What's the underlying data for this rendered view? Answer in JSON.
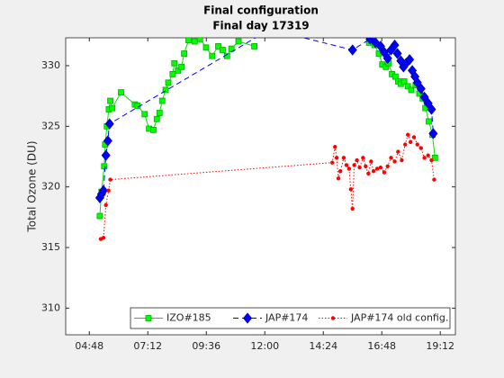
{
  "chart_data": {
    "type": "line",
    "title": "Final configuration",
    "subtitle": "Final day 17319",
    "y_label": "Total Ozone (DU)",
    "xlim": [
      3.83,
      19.82
    ],
    "xticks": [
      {
        "value": 4.8,
        "label": "04:48"
      },
      {
        "value": 7.2,
        "label": "07:12"
      },
      {
        "value": 9.6,
        "label": "09:36"
      },
      {
        "value": 12,
        "label": "12:00"
      },
      {
        "value": 14.4,
        "label": "14:24"
      },
      {
        "value": 16.8,
        "label": "16:48"
      },
      {
        "value": 19.2,
        "label": "19:12"
      }
    ],
    "ylim": [
      307.8,
      332.3
    ],
    "yticks": [
      310,
      315,
      320,
      325,
      330
    ],
    "grid": false,
    "legend": "south-east",
    "series": [
      {
        "name": "IZO#185",
        "color": "#00ff00",
        "marker": "square",
        "line": "solid",
        "x": [
          5.23,
          5.3,
          5.41,
          5.45,
          5.52,
          5.6,
          5.66,
          5.74,
          6.1,
          6.67,
          6.78,
          7.07,
          7.25,
          7.43,
          7.57,
          7.68,
          7.79,
          7.93,
          8.04,
          8.22,
          8.29,
          8.44,
          8.58,
          8.69,
          8.87,
          9.12,
          9.34,
          9.59,
          9.84,
          10.09,
          10.27,
          10.45,
          10.63,
          10.92,
          11.57,
          null,
          16.28,
          16.5,
          16.68,
          16.82,
          16.97,
          17.08,
          17.22,
          17.36,
          17.47,
          17.58,
          17.72,
          17.87,
          18.01,
          18.19,
          18.34,
          18.48,
          18.59,
          18.73,
          18.88,
          18.98
        ],
        "values": [
          317.6,
          319.6,
          321.7,
          323.5,
          325.0,
          326.4,
          327.1,
          326.5,
          327.8,
          326.8,
          326.7,
          326.0,
          324.8,
          324.7,
          325.6,
          326.1,
          327.1,
          328.0,
          328.6,
          329.3,
          330.2,
          329.6,
          329.9,
          331.0,
          332.1,
          332.0,
          332.2,
          331.5,
          330.8,
          331.6,
          331.3,
          330.8,
          331.4,
          332.0,
          331.6,
          null,
          331.9,
          331.7,
          331.0,
          330.1,
          329.9,
          330.2,
          329.3,
          329.1,
          328.7,
          328.5,
          328.7,
          328.3,
          328.0,
          328.4,
          327.7,
          327.3,
          326.5,
          325.4,
          324.3,
          322.4
        ]
      },
      {
        "name": "JAP#174",
        "color": "#0000ff",
        "marker": "diamond",
        "line": "dashed",
        "x": [
          5.23,
          5.3,
          5.38,
          5.48,
          5.56,
          5.63,
          12.2,
          15.6,
          16.32,
          16.54,
          16.75,
          16.9,
          17.04,
          17.18,
          17.33,
          17.44,
          17.58,
          17.69,
          17.8,
          17.94,
          18.05,
          18.16,
          18.26,
          18.41,
          18.55,
          18.7,
          18.84,
          18.91
        ],
        "values": [
          319.1,
          319.4,
          319.7,
          322.6,
          323.8,
          325.2,
          333.0,
          331.3,
          332.2,
          331.9,
          331.6,
          331.1,
          330.6,
          331.3,
          331.7,
          331.0,
          330.4,
          329.9,
          330.2,
          330.5,
          329.6,
          329.1,
          328.6,
          328.1,
          327.4,
          326.9,
          326.4,
          324.4
        ]
      },
      {
        "name": "JAP#174 old config.",
        "color": "#ff0000",
        "marker": "dot",
        "line": "dotted",
        "x": [
          5.27,
          5.38,
          5.48,
          5.59,
          5.66,
          14.77,
          14.88,
          14.95,
          15.02,
          15.1,
          15.24,
          15.35,
          15.46,
          15.53,
          15.6,
          15.67,
          15.78,
          15.89,
          16.03,
          16.14,
          16.25,
          16.36,
          16.46,
          16.61,
          16.75,
          16.9,
          17.04,
          17.18,
          17.33,
          17.47,
          17.62,
          17.76,
          17.87,
          17.98,
          18.12,
          18.26,
          18.41,
          18.55,
          18.7,
          18.84,
          18.95
        ],
        "values": [
          315.7,
          315.8,
          318.5,
          319.7,
          320.6,
          322.0,
          323.3,
          322.4,
          320.7,
          321.3,
          322.4,
          321.8,
          321.5,
          319.8,
          318.2,
          321.8,
          322.2,
          321.6,
          322.4,
          321.7,
          321.1,
          322.1,
          321.3,
          321.5,
          321.6,
          321.2,
          321.7,
          322.4,
          322.1,
          322.9,
          322.2,
          323.5,
          324.3,
          323.7,
          324.1,
          323.5,
          323.2,
          322.4,
          322.6,
          322.2,
          320.6
        ]
      }
    ]
  }
}
